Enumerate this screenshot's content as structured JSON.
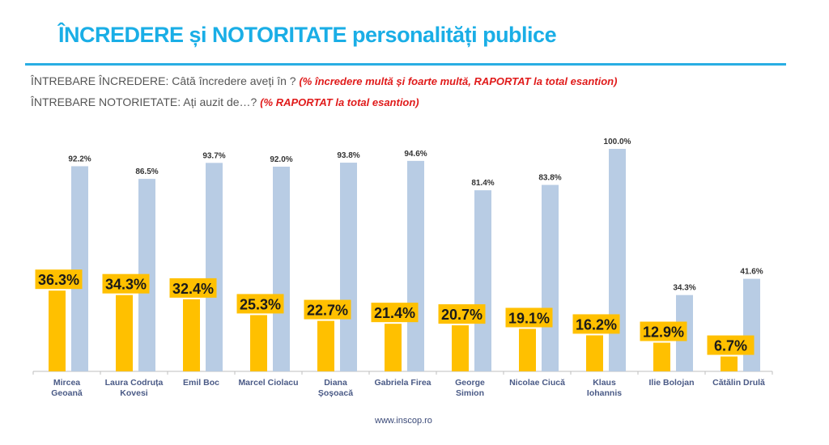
{
  "header": {
    "title": "ÎNCREDERE și NOTORITATE personalități publice",
    "q1_label": "ÎNTREBARE ÎNCREDERE: Câtă încredere aveți în ? ",
    "q1_note": "(%  încredere multă și foarte multă, RAPORTAT la total esantion)",
    "q2_label": "ÎNTREBARE NOTORIETATE: Ați auzit de…? ",
    "q2_note": "(% RAPORTAT la total esantion)"
  },
  "footer": {
    "url": "www.inscop.ro"
  },
  "colors": {
    "trust": "#ffc000",
    "notoriety": "#b8cce4",
    "title": "#1aaee6",
    "note": "#e01b1b"
  },
  "chart_data": {
    "type": "bar",
    "title": "ÎNCREDERE și NOTORITATE personalități publice",
    "xlabel": "",
    "ylabel": "",
    "ylim": [
      0,
      100
    ],
    "grid": false,
    "categories": [
      [
        "Mircea",
        "Geoană"
      ],
      [
        "Laura Codruța",
        "Kovesi"
      ],
      [
        "Emil Boc"
      ],
      [
        "Marcel Ciolacu"
      ],
      [
        "Diana",
        "Șoșoacă"
      ],
      [
        "Gabriela Firea"
      ],
      [
        "George",
        "Simion"
      ],
      [
        "Nicolae Ciucă"
      ],
      [
        "Klaus",
        "Iohannis"
      ],
      [
        "Ilie Bolojan"
      ],
      [
        "Cătălin Drulă"
      ]
    ],
    "series": [
      {
        "name": "Încredere",
        "values": [
          36.3,
          34.3,
          32.4,
          25.3,
          22.7,
          21.4,
          20.7,
          19.1,
          16.2,
          12.9,
          6.7
        ],
        "labels": [
          "36.3%",
          "34.3%",
          "32.4%",
          "25.3%",
          "22.7%",
          "21.4%",
          "20.7%",
          "19.1%",
          "16.2%",
          "12.9%",
          "6.7%"
        ]
      },
      {
        "name": "Notorietate",
        "values": [
          92.2,
          86.5,
          93.7,
          92.0,
          93.8,
          94.6,
          81.4,
          83.8,
          100.0,
          34.3,
          41.6
        ],
        "labels": [
          "92.2%",
          "86.5%",
          "93.7%",
          "92.0%",
          "93.8%",
          "94.6%",
          "81.4%",
          "83.8%",
          "100.0%",
          "34.3%",
          "41.6%"
        ]
      }
    ]
  }
}
